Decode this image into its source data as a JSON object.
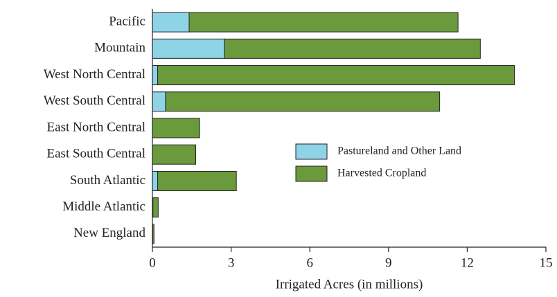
{
  "chart_data": {
    "type": "stacked-barh",
    "x_label": "Irrigated Acres (in millions)",
    "categories": [
      "Pacific",
      "Mountain",
      "West North Central",
      "West South Central",
      "East North Central",
      "East South Central",
      "South Atlantic",
      "Middle Atlantic",
      "New England"
    ],
    "series": [
      {
        "name": "Pastureland and Other Land",
        "color": "#8fd4e6",
        "values": [
          1.4,
          2.75,
          0.2,
          0.5,
          0,
          0,
          0.2,
          0.02,
          0.01
        ]
      },
      {
        "name": "Harvested Cropland",
        "color": "#6a9a3c",
        "values": [
          10.25,
          9.75,
          13.6,
          10.45,
          1.8,
          1.65,
          3.0,
          0.2,
          0.05
        ]
      }
    ],
    "xlim": [
      0,
      15
    ],
    "xticks": [
      0,
      3,
      6,
      9,
      12,
      15
    ],
    "legend": "center-right"
  }
}
